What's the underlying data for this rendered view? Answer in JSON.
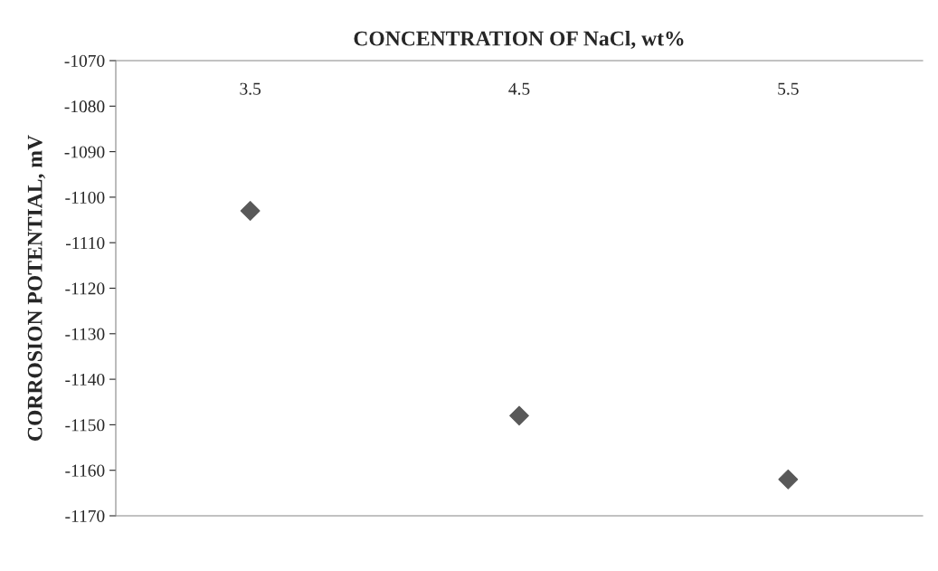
{
  "chart_data": {
    "type": "scatter",
    "xlabel": "CONCENTRATION OF NaCl, wt%",
    "ylabel": "CORROSION POTENTIAL, mV",
    "categories": [
      "3.5",
      "4.5",
      "5.5"
    ],
    "series": [
      {
        "color": "#595959",
        "values": [
          -1103,
          -1148,
          -1162
        ]
      }
    ],
    "ylim": [
      -1170,
      -1070
    ],
    "yticks": [
      -1170,
      -1160,
      -1150,
      -1140,
      -1130,
      -1120,
      -1110,
      -1100,
      -1090,
      -1080,
      -1070
    ],
    "marker": "diamond",
    "grid": false,
    "legend": false
  }
}
